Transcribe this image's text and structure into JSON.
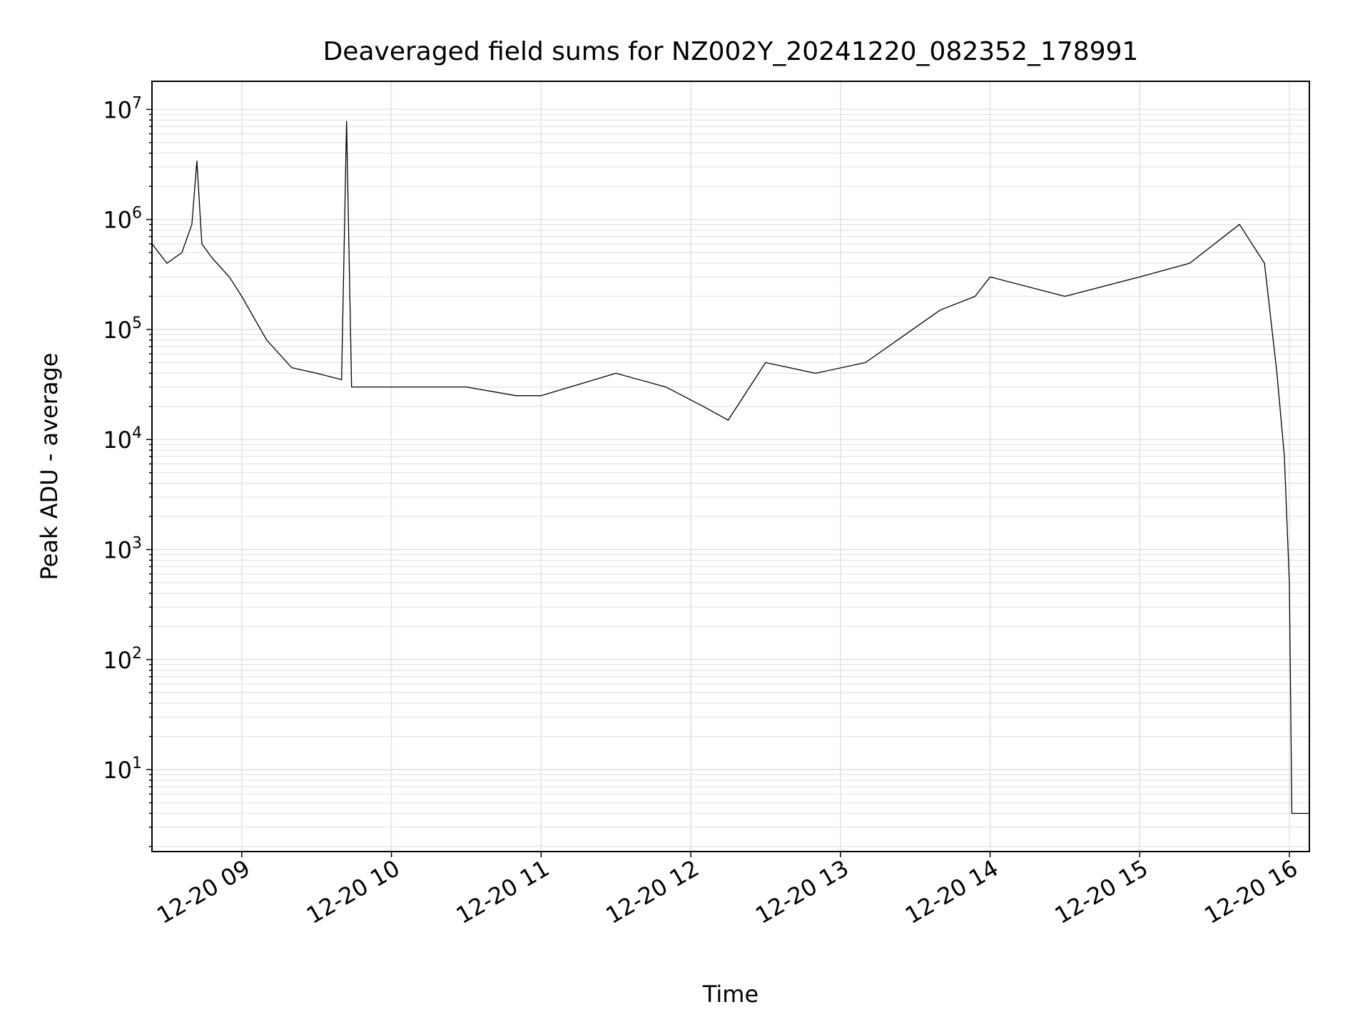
{
  "chart_data": {
    "type": "line",
    "title": "Deaveraged field sums for NZ002Y_20241220_082352_178991",
    "xlabel": "Time",
    "ylabel": "Peak ADU - average",
    "yscale": "log",
    "ylim": [
      1.8,
      18000000
    ],
    "xlim": [
      "2024-12-20 08:24",
      "2024-12-20 16:08"
    ],
    "grid": "on (major and minor)",
    "x_ticks": [
      "12-20 09",
      "12-20 10",
      "12-20 11",
      "12-20 12",
      "12-20 13",
      "12-20 14",
      "12-20 15",
      "12-20 16"
    ],
    "y_ticks": [
      {
        "base": "10",
        "exp": "1"
      },
      {
        "base": "10",
        "exp": "2"
      },
      {
        "base": "10",
        "exp": "3"
      },
      {
        "base": "10",
        "exp": "4"
      },
      {
        "base": "10",
        "exp": "5"
      },
      {
        "base": "10",
        "exp": "6"
      },
      {
        "base": "10",
        "exp": "7"
      }
    ],
    "line_color": "#000000",
    "series": [
      {
        "x": [
          "2024-12-20 08:24",
          "2024-12-20 08:30",
          "2024-12-20 08:36",
          "2024-12-20 08:40",
          "2024-12-20 08:42",
          "2024-12-20 08:44",
          "2024-12-20 08:48",
          "2024-12-20 08:50",
          "2024-12-20 08:55",
          "2024-12-20 09:00",
          "2024-12-20 09:10",
          "2024-12-20 09:20",
          "2024-12-20 09:30",
          "2024-12-20 09:40",
          "2024-12-20 09:42",
          "2024-12-20 09:44",
          "2024-12-20 10:00",
          "2024-12-20 10:30",
          "2024-12-20 10:50",
          "2024-12-20 11:00",
          "2024-12-20 11:30",
          "2024-12-20 11:50",
          "2024-12-20 12:05",
          "2024-12-20 12:15",
          "2024-12-20 12:30",
          "2024-12-20 12:50",
          "2024-12-20 13:10",
          "2024-12-20 13:40",
          "2024-12-20 13:54",
          "2024-12-20 14:00",
          "2024-12-20 14:30",
          "2024-12-20 15:00",
          "2024-12-20 15:20",
          "2024-12-20 15:40",
          "2024-12-20 15:50",
          "2024-12-20 15:55",
          "2024-12-20 15:58",
          "2024-12-20 16:00",
          "2024-12-20 16:01",
          "2024-12-20 16:08"
        ],
        "values": [
          600000,
          400000,
          500000,
          900000,
          3400000,
          600000,
          450000,
          400000,
          300000,
          200000,
          80000,
          45000,
          40000,
          35000,
          7800000,
          30000,
          30000,
          30000,
          25000,
          25000,
          40000,
          30000,
          20000,
          15000,
          50000,
          40000,
          50000,
          150000,
          200000,
          300000,
          200000,
          300000,
          400000,
          900000,
          400000,
          40000,
          7000,
          500,
          4,
          4
        ]
      }
    ]
  }
}
